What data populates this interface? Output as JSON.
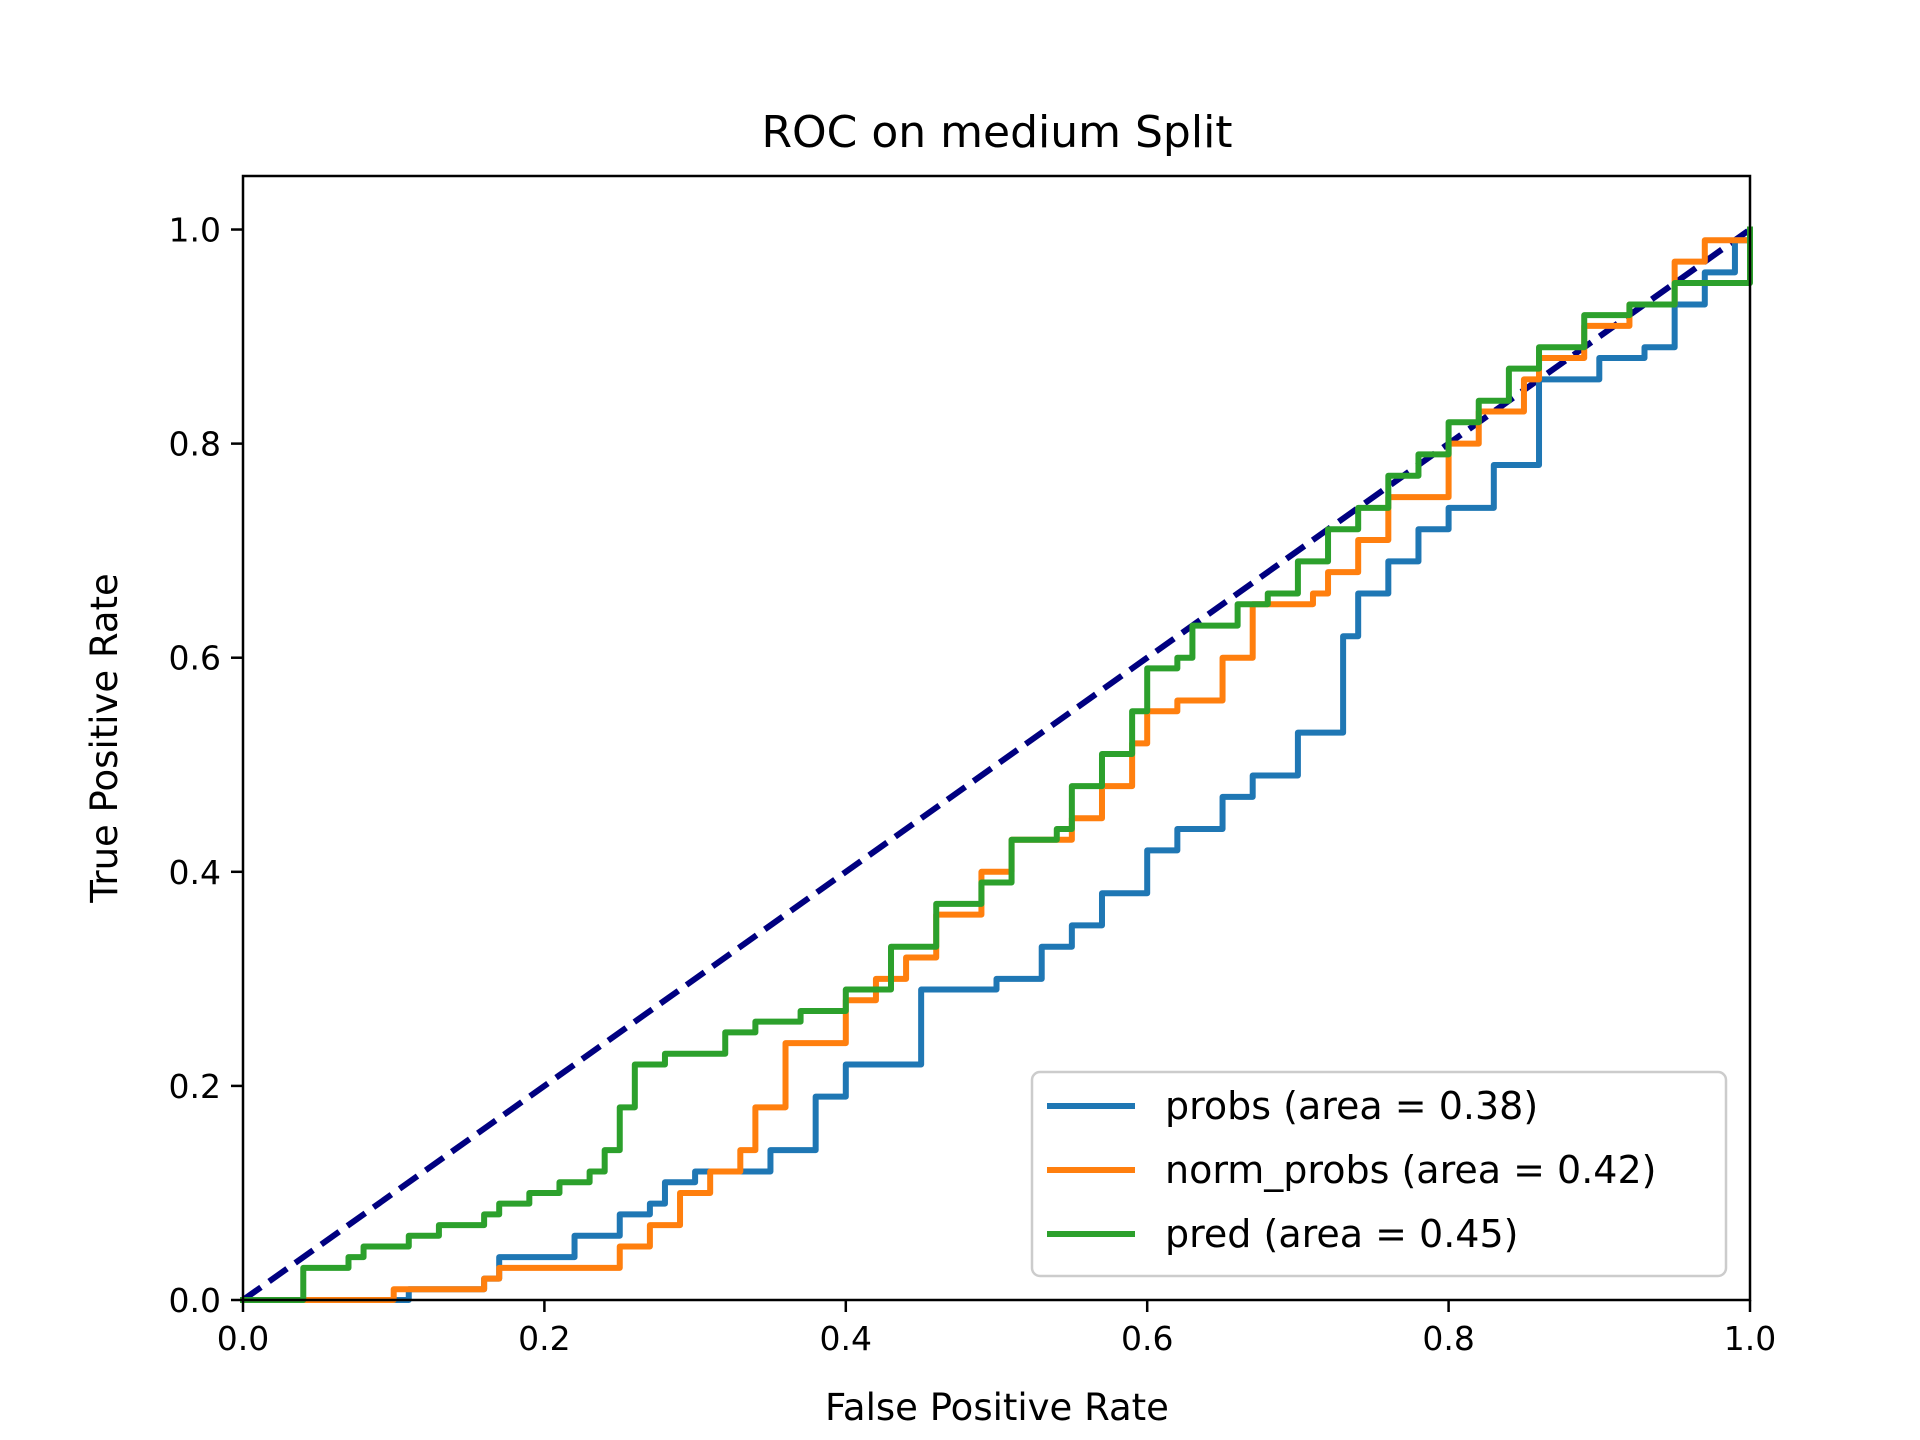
{
  "chart_data": {
    "type": "line",
    "title": "ROC on medium Split",
    "xlabel": "False Positive Rate",
    "ylabel": "True Positive Rate",
    "xlim": [
      0.0,
      1.0
    ],
    "ylim": [
      0.0,
      1.05
    ],
    "xticks": [
      "0.0",
      "0.2",
      "0.4",
      "0.6",
      "0.8",
      "1.0"
    ],
    "yticks": [
      "0.0",
      "0.2",
      "0.4",
      "0.6",
      "0.8",
      "1.0"
    ],
    "grid": false,
    "legend_position": "lower-right",
    "reference_line": {
      "x": [
        0,
        1
      ],
      "y": [
        0,
        1
      ],
      "color": "#000080",
      "style": "dashed"
    },
    "series": [
      {
        "name": "probs (area = 0.38)",
        "color": "#1f77b4",
        "x": [
          0.0,
          0.1,
          0.11,
          0.16,
          0.17,
          0.22,
          0.25,
          0.27,
          0.28,
          0.3,
          0.35,
          0.38,
          0.4,
          0.45,
          0.5,
          0.53,
          0.55,
          0.57,
          0.6,
          0.62,
          0.65,
          0.67,
          0.7,
          0.73,
          0.74,
          0.76,
          0.78,
          0.8,
          0.83,
          0.86,
          0.9,
          0.93,
          0.95,
          0.97,
          0.99,
          1.0
        ],
        "y": [
          0.0,
          0.0,
          0.01,
          0.02,
          0.04,
          0.06,
          0.08,
          0.09,
          0.11,
          0.12,
          0.14,
          0.19,
          0.22,
          0.29,
          0.3,
          0.33,
          0.35,
          0.38,
          0.42,
          0.44,
          0.47,
          0.49,
          0.53,
          0.62,
          0.66,
          0.69,
          0.72,
          0.74,
          0.78,
          0.86,
          0.88,
          0.89,
          0.93,
          0.96,
          0.99,
          1.0
        ]
      },
      {
        "name": "norm_probs (area = 0.42)",
        "color": "#ff7f0e",
        "x": [
          0.0,
          0.09,
          0.1,
          0.16,
          0.17,
          0.24,
          0.25,
          0.27,
          0.29,
          0.31,
          0.33,
          0.34,
          0.36,
          0.4,
          0.42,
          0.44,
          0.46,
          0.49,
          0.51,
          0.55,
          0.57,
          0.59,
          0.6,
          0.62,
          0.65,
          0.67,
          0.69,
          0.71,
          0.72,
          0.74,
          0.76,
          0.8,
          0.82,
          0.85,
          0.86,
          0.89,
          0.92,
          0.95,
          0.97,
          1.0
        ],
        "y": [
          0.0,
          0.0,
          0.01,
          0.02,
          0.03,
          0.03,
          0.05,
          0.07,
          0.1,
          0.12,
          0.14,
          0.18,
          0.24,
          0.28,
          0.3,
          0.32,
          0.36,
          0.4,
          0.43,
          0.45,
          0.48,
          0.52,
          0.55,
          0.56,
          0.6,
          0.65,
          0.65,
          0.66,
          0.68,
          0.71,
          0.75,
          0.8,
          0.83,
          0.86,
          0.88,
          0.91,
          0.93,
          0.97,
          0.99,
          1.0
        ]
      },
      {
        "name": "pred (area = 0.45)",
        "color": "#2ca02c",
        "x": [
          0.0,
          0.03,
          0.04,
          0.07,
          0.08,
          0.11,
          0.13,
          0.16,
          0.17,
          0.19,
          0.21,
          0.23,
          0.24,
          0.25,
          0.26,
          0.28,
          0.29,
          0.32,
          0.34,
          0.37,
          0.4,
          0.43,
          0.46,
          0.49,
          0.51,
          0.54,
          0.55,
          0.57,
          0.59,
          0.6,
          0.62,
          0.63,
          0.66,
          0.68,
          0.7,
          0.72,
          0.74,
          0.76,
          0.78,
          0.8,
          0.82,
          0.84,
          0.86,
          0.89,
          0.92,
          0.95,
          0.98,
          1.0
        ],
        "y": [
          0.0,
          0.0,
          0.03,
          0.04,
          0.05,
          0.06,
          0.07,
          0.08,
          0.09,
          0.1,
          0.11,
          0.12,
          0.14,
          0.18,
          0.22,
          0.23,
          0.23,
          0.25,
          0.26,
          0.27,
          0.29,
          0.33,
          0.37,
          0.39,
          0.43,
          0.44,
          0.48,
          0.51,
          0.55,
          0.59,
          0.6,
          0.63,
          0.65,
          0.66,
          0.69,
          0.72,
          0.74,
          0.77,
          0.79,
          0.82,
          0.84,
          0.87,
          0.89,
          0.92,
          0.93,
          0.95,
          0.95,
          1.0
        ]
      }
    ]
  }
}
